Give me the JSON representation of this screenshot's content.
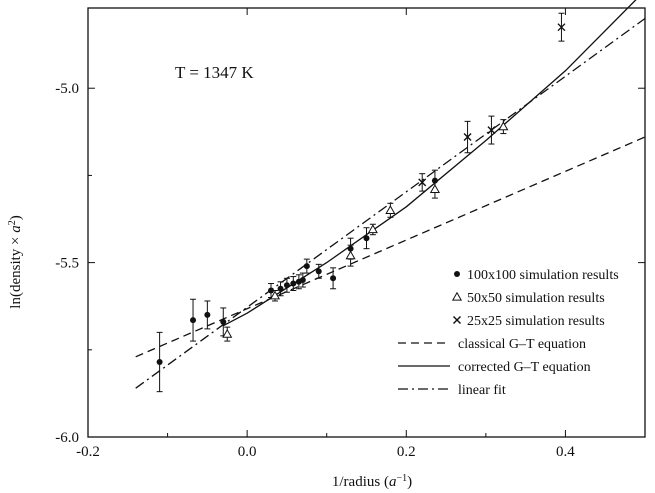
{
  "chart_data": {
    "type": "scatter",
    "annotation": "T = 1347 K",
    "xlabel": "1/radius (a⁻¹)",
    "ylabel": "ln(density × a²)",
    "xlim": [
      -0.2,
      0.5
    ],
    "ylim": [
      -6.0,
      -4.77
    ],
    "xticks": [
      -0.2,
      0.0,
      0.2,
      0.4
    ],
    "xtick_labels": [
      "-0.2",
      "0.0",
      "0.2",
      "0.4"
    ],
    "yticks": [
      -6.0,
      -5.5,
      -5.0
    ],
    "ytick_labels": [
      "-6.0",
      "-5.5",
      "-5.0"
    ],
    "grid": false,
    "legend_position": "bottom-right",
    "series": [
      {
        "name": "100x100 simulation results",
        "marker": "dot",
        "points": [
          {
            "x": -0.11,
            "y": -5.785,
            "err": 0.085
          },
          {
            "x": -0.068,
            "y": -5.665,
            "err": 0.06
          },
          {
            "x": -0.05,
            "y": -5.65,
            "err": 0.04
          },
          {
            "x": -0.03,
            "y": -5.67,
            "err": 0.04
          },
          {
            "x": 0.03,
            "y": -5.58,
            "err": 0.02
          },
          {
            "x": 0.042,
            "y": -5.575,
            "err": 0.02
          },
          {
            "x": 0.05,
            "y": -5.565,
            "err": 0.02
          },
          {
            "x": 0.058,
            "y": -5.56,
            "err": 0.02
          },
          {
            "x": 0.065,
            "y": -5.555,
            "err": 0.02
          },
          {
            "x": 0.07,
            "y": -5.55,
            "err": 0.02
          },
          {
            "x": 0.075,
            "y": -5.51,
            "err": 0.02
          },
          {
            "x": 0.09,
            "y": -5.525,
            "err": 0.02
          },
          {
            "x": 0.108,
            "y": -5.545,
            "err": 0.03
          },
          {
            "x": 0.13,
            "y": -5.46,
            "err": 0.03
          },
          {
            "x": 0.15,
            "y": -5.43,
            "err": 0.03
          },
          {
            "x": 0.236,
            "y": -5.265,
            "err": 0.03
          }
        ]
      },
      {
        "name": "50x50 simulation results",
        "marker": "triangle",
        "points": [
          {
            "x": -0.025,
            "y": -5.705,
            "err": 0.02
          },
          {
            "x": 0.035,
            "y": -5.595,
            "err": 0.015
          },
          {
            "x": 0.13,
            "y": -5.48,
            "err": 0.03
          },
          {
            "x": 0.158,
            "y": -5.405,
            "err": 0.015
          },
          {
            "x": 0.18,
            "y": -5.35,
            "err": 0.02
          },
          {
            "x": 0.236,
            "y": -5.29,
            "err": 0.025
          },
          {
            "x": 0.322,
            "y": -5.11,
            "err": 0.02
          }
        ]
      },
      {
        "name": "25x25 simulation results",
        "marker": "x",
        "points": [
          {
            "x": 0.22,
            "y": -5.27,
            "err": 0.025
          },
          {
            "x": 0.277,
            "y": -5.14,
            "err": 0.045
          },
          {
            "x": 0.307,
            "y": -5.12,
            "err": 0.04
          },
          {
            "x": 0.395,
            "y": -4.825,
            "err": 0.04
          }
        ]
      },
      {
        "name": "classical G–T equation",
        "style": "dashed",
        "line": [
          [
            -0.14,
            -5.77
          ],
          [
            0.5,
            -5.14
          ]
        ]
      },
      {
        "name": "corrected G–T equation",
        "style": "solid",
        "line": [
          [
            -0.03,
            -5.681
          ],
          [
            0.0,
            -5.645
          ],
          [
            0.1,
            -5.5
          ],
          [
            0.2,
            -5.34
          ],
          [
            0.3,
            -5.15
          ],
          [
            0.4,
            -4.95
          ],
          [
            0.5,
            -4.72
          ]
        ]
      },
      {
        "name": "linear fit",
        "style": "dash-dot",
        "line": [
          [
            -0.14,
            -5.86
          ],
          [
            0.5,
            -4.8
          ]
        ]
      }
    ]
  }
}
